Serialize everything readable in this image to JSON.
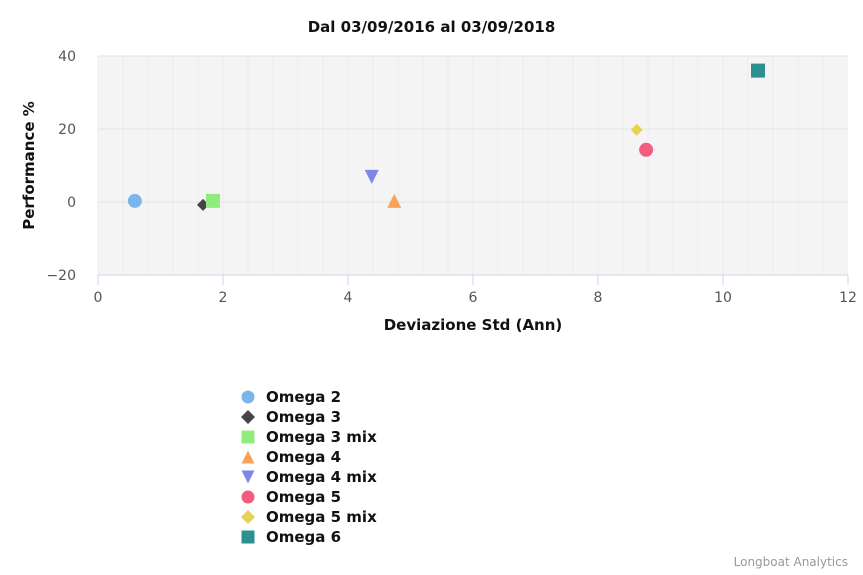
{
  "chart_data": {
    "type": "scatter",
    "title": "Dal 03/09/2016 al 03/09/2018",
    "xlabel": "Deviazione Std (Ann)",
    "ylabel": "Performance %",
    "xlim": [
      0,
      12
    ],
    "ylim": [
      -20,
      40
    ],
    "xticks": [
      0,
      2,
      4,
      6,
      8,
      10,
      12
    ],
    "yticks": [
      -20,
      0,
      20,
      40
    ],
    "grid": true,
    "legend_position": "bottom-left",
    "series": [
      {
        "name": "Omega 2",
        "marker": "circle",
        "color": "#7cb5ec",
        "x": 0.59,
        "y": 0.3
      },
      {
        "name": "Omega 3",
        "marker": "diamond",
        "color": "#434348",
        "x": 1.68,
        "y": -0.8
      },
      {
        "name": "Omega 3 mix",
        "marker": "square",
        "color": "#90ed7d",
        "x": 1.84,
        "y": 0.3
      },
      {
        "name": "Omega 4",
        "marker": "triangle",
        "color": "#f7a35c",
        "x": 4.74,
        "y": 0.3
      },
      {
        "name": "Omega 4 mix",
        "marker": "triangle-down",
        "color": "#8085e9",
        "x": 4.38,
        "y": 6.9
      },
      {
        "name": "Omega 5",
        "marker": "circle",
        "color": "#f15c80",
        "x": 8.77,
        "y": 14.3
      },
      {
        "name": "Omega 5 mix",
        "marker": "diamond",
        "color": "#e4d354",
        "x": 8.62,
        "y": 19.8
      },
      {
        "name": "Omega 6",
        "marker": "square",
        "color": "#2b908f",
        "x": 10.56,
        "y": 36.0
      }
    ]
  },
  "credits": "Longboat Analytics"
}
